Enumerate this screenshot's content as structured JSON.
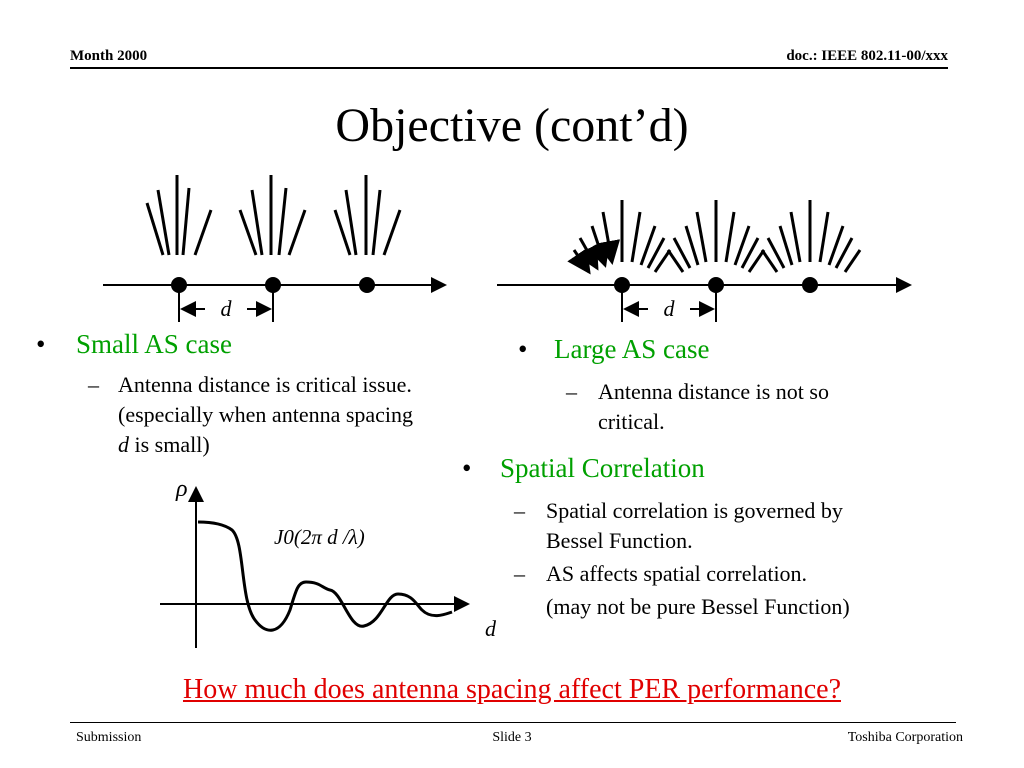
{
  "header": {
    "left": "Month 2000",
    "right": "doc.: IEEE 802.11-00/xxx"
  },
  "title": "Objective (cont’d)",
  "left_panel": {
    "bullet": "Small AS case",
    "sub_line1": "Antenna distance is critical issue.",
    "sub_line2": "(especially when antenna spacing",
    "sub_line3_var": "d",
    "sub_line3_rest": " is small)",
    "spacing_label": "d"
  },
  "right_panel": {
    "bullet": "Large AS case",
    "sub_line1": "Antenna distance is not so",
    "sub_line2": "critical.",
    "spacing_label": "d"
  },
  "spatial": {
    "bullet": "Spatial Correlation",
    "sub1_line1": "Spatial correlation is governed by",
    "sub1_line2": "Bessel Function.",
    "sub2": "AS affects spatial correlation.",
    "sub3": "(may not be pure Bessel Function)",
    "color": "#00a000"
  },
  "plot": {
    "y_label": "ρ",
    "x_label": "d",
    "curve_label": "J0(2π d /λ)"
  },
  "question": "How much does antenna spacing affect PER performance?",
  "footer": {
    "left": "Submission",
    "center": "Slide 3",
    "right": "Toshiba Corporation"
  },
  "colors": {
    "question": "#e00000",
    "spatial": "#00a000"
  }
}
